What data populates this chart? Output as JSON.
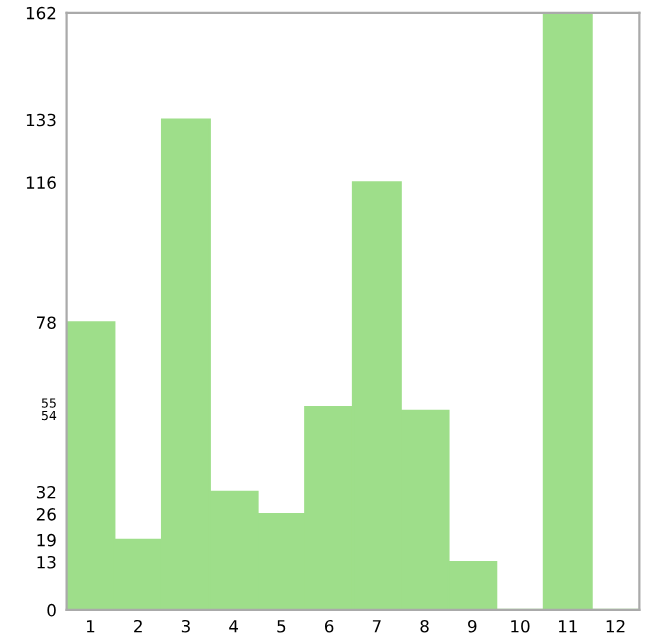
{
  "chart_data": {
    "type": "bar",
    "categories": [
      "1",
      "2",
      "3",
      "4",
      "5",
      "6",
      "7",
      "8",
      "9",
      "10",
      "11",
      "12"
    ],
    "values": [
      78,
      19,
      133,
      32,
      26,
      55,
      116,
      54,
      13,
      0,
      162,
      0
    ],
    "color": "#9ede8a",
    "ylim": [
      0,
      162
    ],
    "yticks": [
      0,
      13,
      19,
      26,
      32,
      54,
      55,
      78,
      116,
      133,
      162
    ],
    "grid": false
  }
}
